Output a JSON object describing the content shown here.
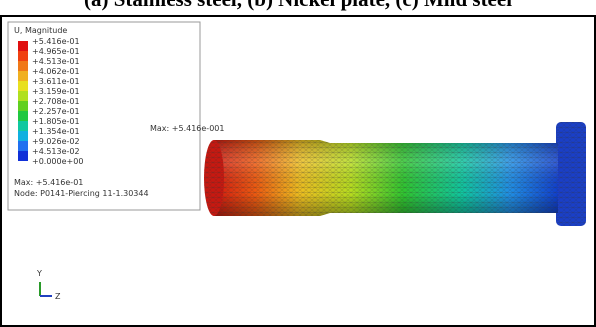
{
  "caption": "(a) Stainless steel, (b) Nickel plate, (c) Mild steel",
  "legend": {
    "title": "U, Magnitude",
    "values": [
      "+5.416e-01",
      "+4.965e-01",
      "+4.513e-01",
      "+4.062e-01",
      "+3.611e-01",
      "+3.159e-01",
      "+2.708e-01",
      "+2.257e-01",
      "+1.805e-01",
      "+1.354e-01",
      "+9.026e-02",
      "+4.513e-02",
      "+0.000e+00"
    ],
    "max": "Max: +5.416e-01",
    "node": "Node: P0141-Piercing 11-1.30344"
  },
  "annotation": "Max: +5.416e-001",
  "triad": {
    "y": "Y",
    "z": "Z"
  }
}
